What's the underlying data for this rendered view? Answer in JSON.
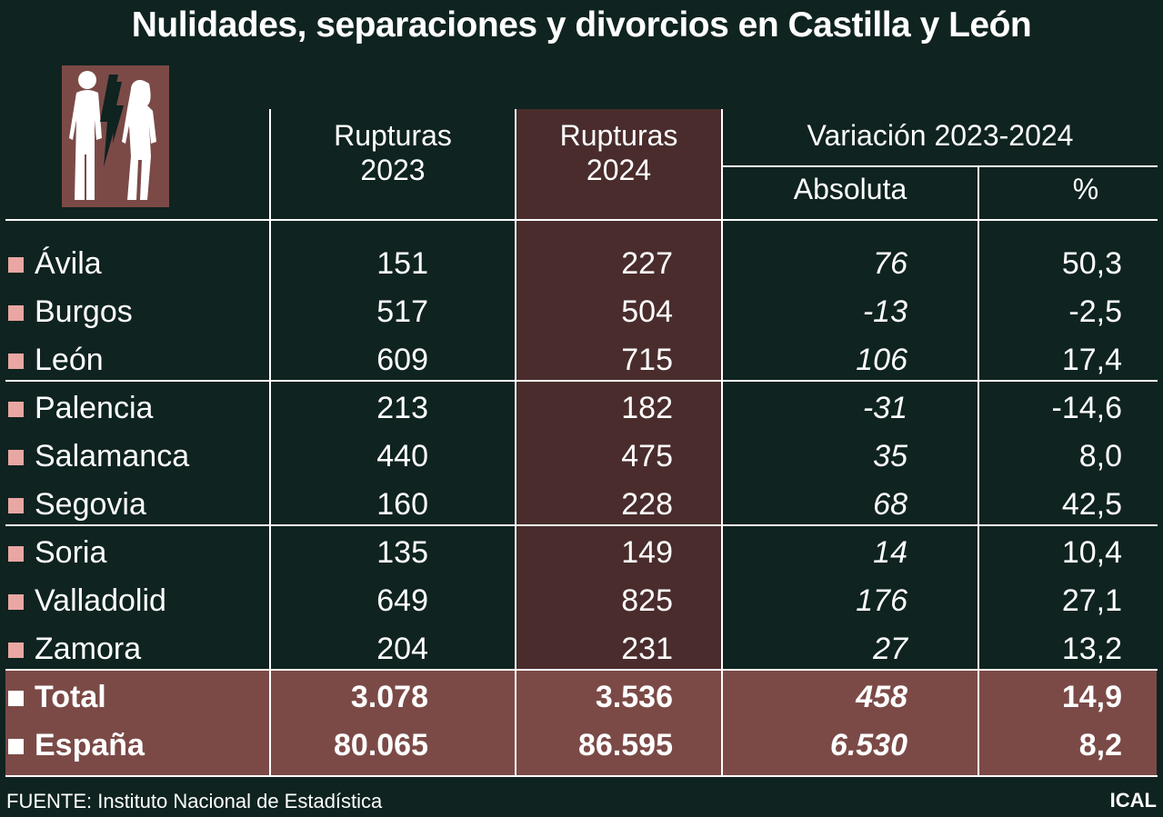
{
  "title": "Nulidades, separaciones y divorcios en Castilla y León",
  "headers": {
    "rupturas_2023": [
      "Rupturas",
      "2023"
    ],
    "rupturas_2024": [
      "Rupturas",
      "2024"
    ],
    "variacion": "Variación 2023-2024",
    "absoluta": "Absoluta",
    "porcentaje": "%"
  },
  "colors": {
    "background": "#0f2320",
    "accent": "#7b4a47",
    "column_2024": "#4a2c2c",
    "bullet": "#e8a7a3"
  },
  "chart_data": {
    "type": "table",
    "title": "Nulidades, separaciones y divorcios en Castilla y León",
    "columns": [
      "Rupturas 2023",
      "Rupturas 2024",
      "Variación 2023-2024 Absoluta",
      "Variación 2023-2024 %"
    ],
    "rows": [
      {
        "name": "Ávila",
        "r2023": "151",
        "r2024": "227",
        "abs": "76",
        "pct": "50,3"
      },
      {
        "name": "Burgos",
        "r2023": "517",
        "r2024": "504",
        "abs": "-13",
        "pct": "-2,5"
      },
      {
        "name": "León",
        "r2023": "609",
        "r2024": "715",
        "abs": "106",
        "pct": "17,4"
      },
      {
        "name": "Palencia",
        "r2023": "213",
        "r2024": "182",
        "abs": "-31",
        "pct": "-14,6"
      },
      {
        "name": "Salamanca",
        "r2023": "440",
        "r2024": "475",
        "abs": "35",
        "pct": "8,0"
      },
      {
        "name": "Segovia",
        "r2023": "160",
        "r2024": "228",
        "abs": "68",
        "pct": "42,5"
      },
      {
        "name": "Soria",
        "r2023": "135",
        "r2024": "149",
        "abs": "14",
        "pct": "10,4"
      },
      {
        "name": "Valladolid",
        "r2023": "649",
        "r2024": "825",
        "abs": "176",
        "pct": "27,1"
      },
      {
        "name": "Zamora",
        "r2023": "204",
        "r2024": "231",
        "abs": "27",
        "pct": "13,2"
      }
    ],
    "totals": [
      {
        "name": "Total",
        "r2023": "3.078",
        "r2024": "3.536",
        "abs": "458",
        "pct": "14,9"
      },
      {
        "name": "España",
        "r2023": "80.065",
        "r2024": "86.595",
        "abs": "6.530",
        "pct": "8,2"
      }
    ]
  },
  "footer": {
    "source": "FUENTE: Instituto Nacional de Estadística",
    "brand": "ICAL"
  },
  "icon": "couple-breakup-icon"
}
